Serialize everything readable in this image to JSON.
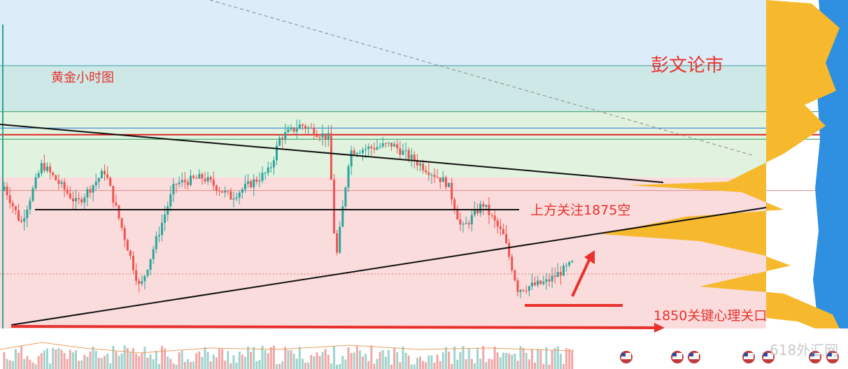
{
  "chart_data": {
    "type": "candlestick",
    "title": "黄金小时图",
    "author": "彭文论市",
    "annotations": {
      "resistance": "上方关注1875空",
      "support": "1850关键心理关口"
    },
    "bands": [
      {
        "from": 1885,
        "to": 1895,
        "color": "#dcecf8"
      },
      {
        "from": 1878,
        "to": 1885,
        "color": "#cde8e6"
      },
      {
        "from": 1868,
        "to": 1878,
        "color": "#e1f2df"
      },
      {
        "from": 1845,
        "to": 1868,
        "color": "#fbdcdc"
      }
    ],
    "levels": [
      {
        "value": 1885,
        "color": "#3aa0a0"
      },
      {
        "value": 1878,
        "color": "#2e9a57"
      },
      {
        "value": 1873.8,
        "color": "#2e9a57"
      },
      {
        "value": 1875.5,
        "color": "#2c7bd6"
      },
      {
        "value": 1874.5,
        "color": "#e02424",
        "width": 2
      },
      {
        "value": 1866,
        "color": "#e58a8a"
      }
    ],
    "ylim": [
      1845,
      1895
    ],
    "trendlines": [
      {
        "p1": [
          0,
          1873
        ],
        "p2": [
          310,
          1872.6
        ],
        "color": "#111111"
      },
      {
        "p1": [
          0,
          1850.4
        ],
        "p2": [
          360,
          1871
        ],
        "color": "#111111"
      },
      {
        "p1": [
          16,
          1872
        ],
        "p2": [
          250,
          1872
        ],
        "color": "#111111"
      }
    ],
    "colors": {
      "up": "#26a69a",
      "down": "#ef5350"
    }
  },
  "logo_text": "618外汇网"
}
